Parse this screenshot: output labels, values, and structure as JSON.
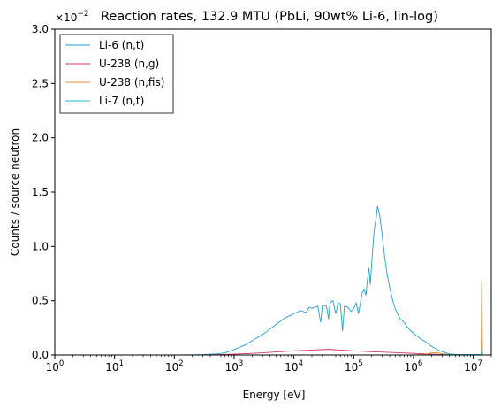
{
  "chart_data": {
    "type": "line",
    "title": "Reaction rates, 132.9 MTU (PbLi, 90wt% Li-6, lin-log)",
    "xlabel": "Energy [eV]",
    "ylabel": "Counts / source neutron",
    "xscale": "log",
    "xlim": [
      1,
      20000000
    ],
    "ylim": [
      0,
      0.03
    ],
    "y_multiplier_label": "×10",
    "y_multiplier_exponent": "−2",
    "x_tick_base": "10",
    "x_ticks": [
      {
        "value": 1,
        "exp": "0"
      },
      {
        "value": 10,
        "exp": "1"
      },
      {
        "value": 100,
        "exp": "2"
      },
      {
        "value": 1000,
        "exp": "3"
      },
      {
        "value": 10000,
        "exp": "4"
      },
      {
        "value": 100000,
        "exp": "5"
      },
      {
        "value": 1000000,
        "exp": "6"
      },
      {
        "value": 10000000,
        "exp": "7"
      }
    ],
    "y_ticks": [
      {
        "value": 0,
        "label": "0.0"
      },
      {
        "value": 0.005,
        "label": "0.5"
      },
      {
        "value": 0.01,
        "label": "1.0"
      },
      {
        "value": 0.015,
        "label": "1.5"
      },
      {
        "value": 0.02,
        "label": "2.0"
      },
      {
        "value": 0.025,
        "label": "2.5"
      },
      {
        "value": 0.03,
        "label": "3.0"
      }
    ],
    "legend_position": "top-left",
    "grid": false,
    "series": [
      {
        "name": "Li-6 (n,t)",
        "color": "#1f9fd3",
        "points": [
          [
            100,
            0
          ],
          [
            200,
            1e-05
          ],
          [
            300,
            3e-05
          ],
          [
            500,
            0.0001
          ],
          [
            700,
            0.0002
          ],
          [
            1000,
            0.0005
          ],
          [
            1500,
            0.0009
          ],
          [
            2000,
            0.0013
          ],
          [
            3000,
            0.0019
          ],
          [
            4000,
            0.0024
          ],
          [
            5000,
            0.0028
          ],
          [
            7000,
            0.0034
          ],
          [
            10000,
            0.0038
          ],
          [
            13000,
            0.0041
          ],
          [
            16000,
            0.0039
          ],
          [
            18000,
            0.0044
          ],
          [
            20000,
            0.0043
          ],
          [
            25000,
            0.0045
          ],
          [
            28000,
            0.003
          ],
          [
            30000,
            0.0046
          ],
          [
            35000,
            0.0045
          ],
          [
            38000,
            0.0033
          ],
          [
            40000,
            0.0048
          ],
          [
            45000,
            0.005
          ],
          [
            50000,
            0.0038
          ],
          [
            55000,
            0.0048
          ],
          [
            60000,
            0.0047
          ],
          [
            65000,
            0.0022
          ],
          [
            70000,
            0.0045
          ],
          [
            80000,
            0.0044
          ],
          [
            90000,
            0.004
          ],
          [
            100000,
            0.0043
          ],
          [
            110000,
            0.0048
          ],
          [
            120000,
            0.0038
          ],
          [
            140000,
            0.0058
          ],
          [
            150000,
            0.006
          ],
          [
            160000,
            0.0055
          ],
          [
            170000,
            0.007
          ],
          [
            180000,
            0.008
          ],
          [
            190000,
            0.0065
          ],
          [
            200000,
            0.0085
          ],
          [
            220000,
            0.0115
          ],
          [
            240000,
            0.0128
          ],
          [
            250000,
            0.0137
          ],
          [
            270000,
            0.013
          ],
          [
            300000,
            0.011
          ],
          [
            330000,
            0.009
          ],
          [
            360000,
            0.0075
          ],
          [
            400000,
            0.0062
          ],
          [
            450000,
            0.005
          ],
          [
            500000,
            0.0042
          ],
          [
            600000,
            0.0033
          ],
          [
            700000,
            0.003
          ],
          [
            800000,
            0.0025
          ],
          [
            1000000,
            0.002
          ],
          [
            1300000,
            0.0015
          ],
          [
            1600000,
            0.0012
          ],
          [
            2000000,
            0.0008
          ],
          [
            2500000,
            0.0005
          ],
          [
            3000000,
            0.0003
          ],
          [
            4000000,
            0.0001
          ],
          [
            5000000,
            5e-05
          ],
          [
            7000000,
            0
          ],
          [
            13000000,
            0
          ],
          [
            14000000,
            0
          ],
          [
            20000000,
            0
          ]
        ]
      },
      {
        "name": "U-238 (n,g)",
        "color": "#d6336c",
        "points": [
          [
            300,
            0
          ],
          [
            500,
            2e-05
          ],
          [
            1000,
            8e-05
          ],
          [
            2000,
            0.00015
          ],
          [
            3000,
            0.0002
          ],
          [
            5000,
            0.00028
          ],
          [
            10000,
            0.00038
          ],
          [
            20000,
            0.00045
          ],
          [
            30000,
            0.0005
          ],
          [
            40000,
            0.00052
          ],
          [
            60000,
            0.00045
          ],
          [
            100000,
            0.00038
          ],
          [
            200000,
            0.0003
          ],
          [
            500000,
            0.00022
          ],
          [
            1000000,
            0.00015
          ],
          [
            2000000,
            8e-05
          ],
          [
            4000000,
            2e-05
          ],
          [
            8000000,
            0
          ],
          [
            20000000,
            0
          ]
        ]
      },
      {
        "name": "U-238 (n,fis)",
        "color": "#f08c2c",
        "points": [
          [
            1000000,
            0
          ],
          [
            1500000,
            5e-05
          ],
          [
            2000000,
            0.0002
          ],
          [
            2500000,
            0.00022
          ],
          [
            3000000,
            0.00012
          ],
          [
            4000000,
            3e-05
          ],
          [
            6000000,
            0
          ],
          [
            13500000,
            0
          ],
          [
            13800000,
            0.0068
          ],
          [
            14000000,
            0.0068
          ],
          [
            14200000,
            0
          ],
          [
            20000000,
            0
          ]
        ]
      },
      {
        "name": "Li-7 (n,t)",
        "color": "#17becf",
        "points": [
          [
            2000000,
            0
          ],
          [
            3000000,
            2e-05
          ],
          [
            5000000,
            4e-05
          ],
          [
            8000000,
            5e-05
          ],
          [
            13500000,
            5e-05
          ],
          [
            13800000,
            0.0005
          ],
          [
            14000000,
            0.0005
          ],
          [
            14200000,
            0
          ],
          [
            20000000,
            0
          ]
        ]
      }
    ],
    "extra_spikes": [
      {
        "x": 14100000,
        "y": 0.0005,
        "color": "#2ca02c"
      }
    ]
  }
}
